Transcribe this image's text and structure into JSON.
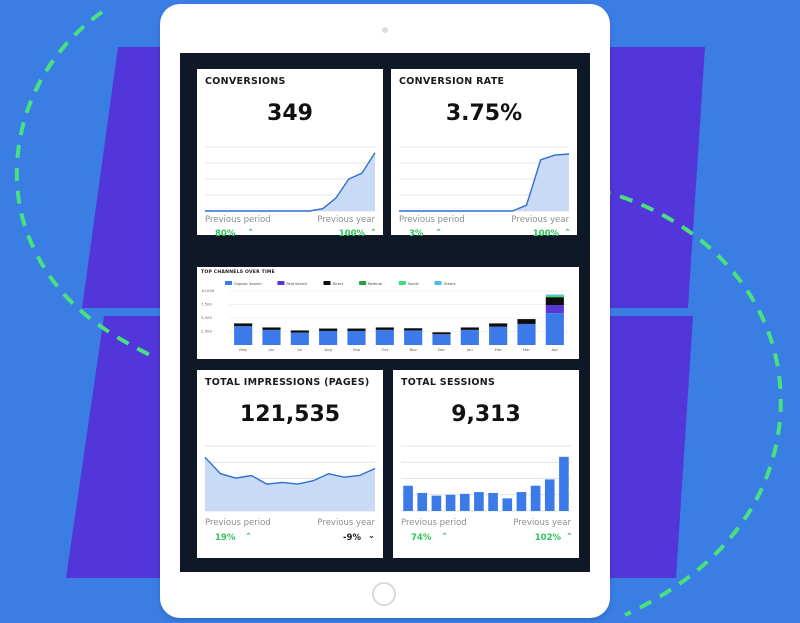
{
  "conversions": {
    "title": "CONVERSIONS",
    "value": "349",
    "prev_label": "Previous period",
    "year_label": "Previous year",
    "prev_change": "80%",
    "year_change": "100%",
    "chart_data": {
      "type": "area",
      "values": [
        0,
        0,
        0,
        0,
        0,
        0,
        0,
        0,
        0,
        4,
        22,
        55,
        65,
        100
      ],
      "ylim": [
        0,
        110
      ]
    }
  },
  "conversion_rate": {
    "title": "CONVERSION RATE",
    "value": "3.75%",
    "prev_label": "Previous period",
    "year_label": "Previous year",
    "prev_change": "3%",
    "year_change": "100%",
    "chart_data": {
      "type": "area",
      "values": [
        0,
        0,
        0,
        0,
        0,
        0,
        0,
        0,
        0,
        10,
        88,
        96,
        98
      ],
      "ylim": [
        0,
        110
      ]
    }
  },
  "channels": {
    "title": "TOP CHANNELS OVER TIME",
    "chart_data": {
      "type": "bar",
      "categories": [
        "May",
        "Jun",
        "Jul",
        "Aug",
        "Sep",
        "Oct",
        "Nov",
        "Dec",
        "Jan",
        "Feb",
        "Mar",
        "Apr"
      ],
      "yticks": [
        "10,000",
        "7,500",
        "5,000",
        "2,500"
      ],
      "ylim": [
        0,
        10000
      ],
      "series": [
        {
          "name": "Organic Search",
          "color": "#3b7ae8",
          "values": [
            3500,
            2800,
            2300,
            2600,
            2600,
            2800,
            2700,
            2000,
            2800,
            3400,
            3900,
            5900
          ]
        },
        {
          "name": "Paid Search",
          "color": "#5b35d6",
          "values": [
            0,
            0,
            0,
            0,
            0,
            0,
            0,
            0,
            0,
            0,
            0,
            1500
          ]
        },
        {
          "name": "Direct",
          "color": "#0d0d0d",
          "values": [
            500,
            450,
            400,
            450,
            450,
            450,
            400,
            350,
            450,
            600,
            900,
            1400
          ]
        },
        {
          "name": "Referral",
          "color": "#2c9e3c",
          "values": [
            0,
            0,
            0,
            0,
            0,
            0,
            0,
            0,
            0,
            0,
            0,
            150
          ]
        },
        {
          "name": "Social",
          "color": "#3fe07a",
          "values": [
            0,
            0,
            0,
            0,
            0,
            0,
            0,
            0,
            0,
            0,
            0,
            200
          ]
        },
        {
          "name": "Others",
          "color": "#4fb8f0",
          "values": [
            0,
            0,
            0,
            0,
            0,
            0,
            0,
            0,
            0,
            0,
            0,
            200
          ]
        }
      ]
    }
  },
  "impressions": {
    "title": "TOTAL IMPRESSIONS (PAGES)",
    "value": "121,535",
    "prev_label": "Previous period",
    "year_label": "Previous year",
    "prev_change": "19%",
    "year_change": "-9%",
    "chart_data": {
      "type": "area",
      "values": [
        62,
        43,
        38,
        41,
        31,
        33,
        31,
        35,
        43,
        39,
        41,
        49
      ],
      "ylim": [
        0,
        75
      ]
    }
  },
  "sessions": {
    "title": "TOTAL SESSIONS",
    "value": "9,313",
    "prev_label": "Previous period",
    "year_label": "Previous year",
    "prev_change": "74%",
    "year_change": "102%",
    "chart_data": {
      "type": "bar",
      "values": [
        28,
        20,
        17,
        18,
        19,
        21,
        20,
        14,
        21,
        28,
        35,
        60
      ],
      "ylim": [
        0,
        72
      ]
    }
  },
  "colors": {
    "accent": "#3b7ae8",
    "area_fill": "#c9daf7",
    "positive": "#2ec55a",
    "background": "#3a7ee4"
  }
}
